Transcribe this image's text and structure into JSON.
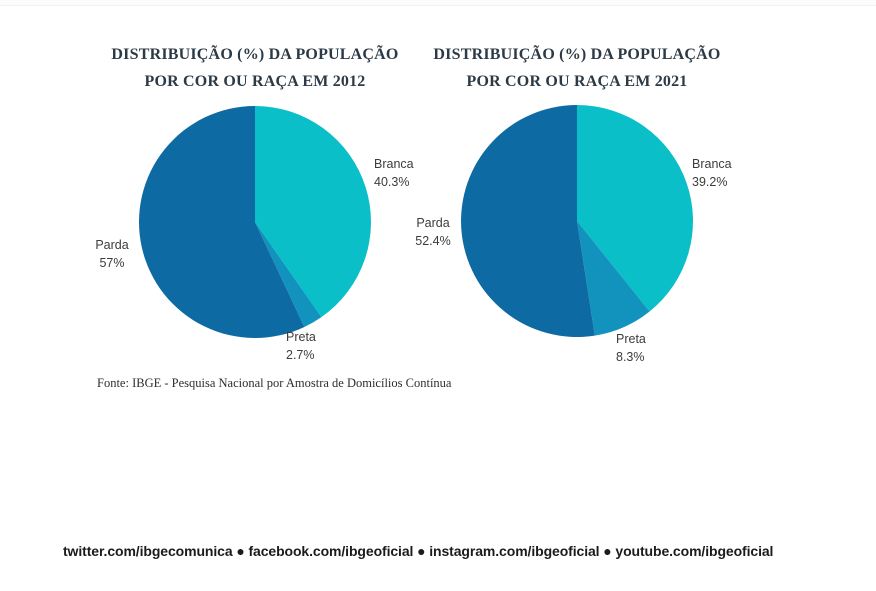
{
  "page": {
    "source_note": "Fonte: IBGE - Pesquisa Nacional por Amostra de Domicílios Contínua",
    "footer": "twitter.com/ibgecomunica ● facebook.com/ibgeoficial ● instagram.com/ibgeoficial ● youtube.com/ibgeoficial"
  },
  "colors": {
    "branca": "#0abfc8",
    "preta": "#1193bd",
    "parda": "#0e6aa3",
    "title_text": "#2c3a46",
    "label_text": "#3c3c3c"
  },
  "chart_data": [
    {
      "type": "pie",
      "title_line1": "DISTRIBUIÇÃO (%) DA POPULAÇÃO",
      "title_line2": "POR COR OU RAÇA EM 2012",
      "start_angle": "12-o-clock",
      "direction": "clockwise",
      "legend": "none, direct labels outside slices",
      "slices": [
        {
          "label": "Branca",
          "value": 40.3,
          "pct_label": "40.3%",
          "color": "#0abfc8"
        },
        {
          "label": "Preta",
          "value": 2.7,
          "pct_label": "2.7%",
          "color": "#1193bd"
        },
        {
          "label": "Parda",
          "value": 57,
          "pct_label": "57%",
          "color": "#0e6aa3"
        }
      ]
    },
    {
      "type": "pie",
      "title_line1": "DISTRIBUIÇÃO (%) DA POPULAÇÃO",
      "title_line2": "POR COR OU RAÇA EM 2021",
      "start_angle": "12-o-clock",
      "direction": "clockwise",
      "legend": "none, direct labels outside slices",
      "slices": [
        {
          "label": "Branca",
          "value": 39.2,
          "pct_label": "39.2%",
          "color": "#0abfc8"
        },
        {
          "label": "Preta",
          "value": 8.3,
          "pct_label": "8.3%",
          "color": "#1193bd"
        },
        {
          "label": "Parda",
          "value": 52.4,
          "pct_label": "52.4%",
          "color": "#0e6aa3"
        }
      ]
    }
  ]
}
